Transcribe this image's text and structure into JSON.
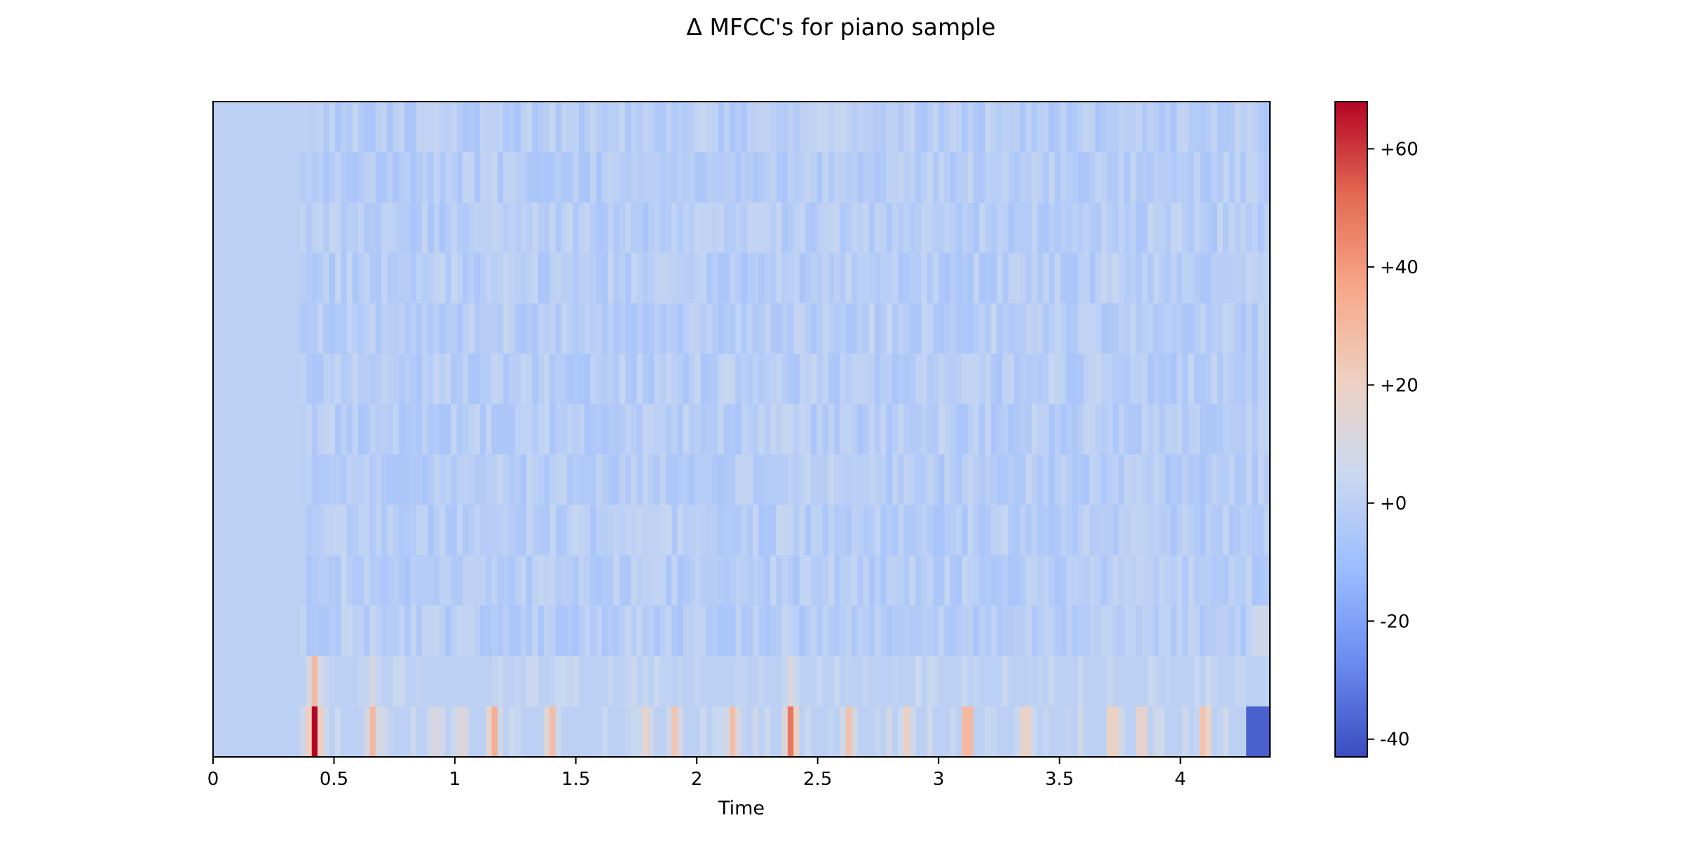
{
  "chart_data": {
    "type": "heatmap",
    "title": "Δ MFCC's for piano sample",
    "xlabel": "Time",
    "ylabel": "",
    "xlim": [
      0,
      4.37
    ],
    "x_ticks": [
      0,
      0.5,
      1,
      1.5,
      2,
      2.5,
      3,
      3.5,
      4
    ],
    "x_tick_labels": [
      "0",
      "0.5",
      "1",
      "1.5",
      "2",
      "2.5",
      "3",
      "3.5",
      "4"
    ],
    "n_coefficients": 13,
    "colormap": "coolwarm",
    "colorbar": {
      "range": [
        -43,
        68
      ],
      "ticks": [
        60,
        40,
        20,
        0,
        -20,
        -40
      ],
      "tick_labels": [
        "+60",
        "+40",
        "+20",
        "+0",
        "-20",
        "-40"
      ],
      "colors": [
        "#3b4cc0",
        "#6a8bef",
        "#9bbcff",
        "#c9d8f0",
        "#edd1c2",
        "#f7a889",
        "#e36a53",
        "#b40426"
      ]
    },
    "grid": false,
    "silence_until_time": 0.37,
    "background_value": 0,
    "bottom_row_peaks": [
      {
        "time": 0.42,
        "value": 68
      },
      {
        "time": 0.66,
        "value": 30
      },
      {
        "time": 0.93,
        "value": 14
      },
      {
        "time": 1.03,
        "value": 18
      },
      {
        "time": 1.16,
        "value": 38
      },
      {
        "time": 1.4,
        "value": 32
      },
      {
        "time": 1.79,
        "value": 20
      },
      {
        "time": 1.91,
        "value": 26
      },
      {
        "time": 2.15,
        "value": 30
      },
      {
        "time": 2.39,
        "value": 52
      },
      {
        "time": 2.63,
        "value": 28
      },
      {
        "time": 2.87,
        "value": 22
      },
      {
        "time": 3.12,
        "value": 45
      },
      {
        "time": 3.36,
        "value": 28
      },
      {
        "time": 3.72,
        "value": 30
      },
      {
        "time": 3.84,
        "value": 26
      },
      {
        "time": 4.1,
        "value": 34
      }
    ],
    "row_2_peaks": [
      {
        "time": 0.42,
        "value": 30
      },
      {
        "time": 0.66,
        "value": 10
      },
      {
        "time": 2.39,
        "value": 12
      }
    ]
  }
}
